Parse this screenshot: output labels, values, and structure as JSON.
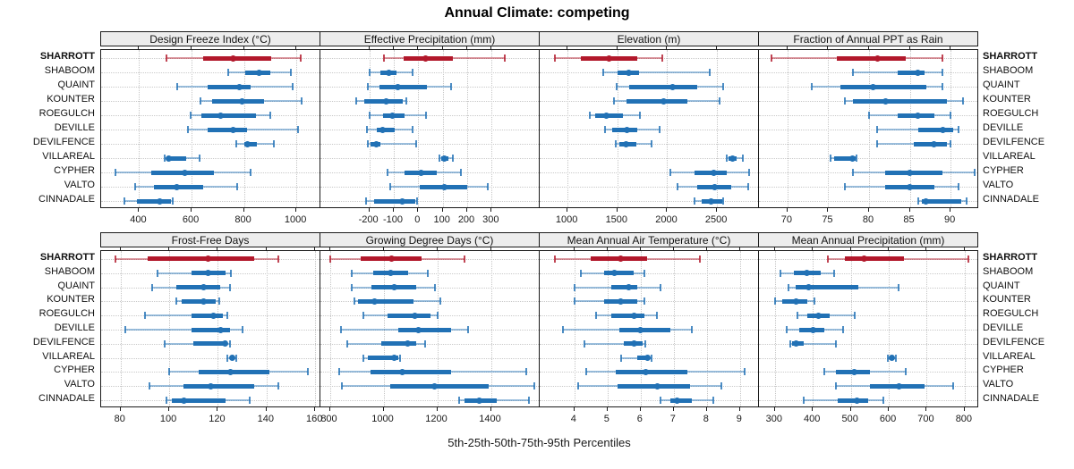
{
  "title": "Annual Climate: competing",
  "caption": "5th-25th-50th-75th-95th Percentiles",
  "colors": {
    "highlight": "#B2182B",
    "normal": "#2171B5",
    "strip_bg": "#EDEDED",
    "grid": "#C6C6C6",
    "border": "#1A1A1A"
  },
  "chart_data": {
    "type": "trellis-percentile-dotplot",
    "percentile_labels": [
      "5th",
      "25th",
      "50th",
      "75th",
      "95th"
    ],
    "legend_note": "red row = highlighted site SHARROTT; blue rows = comparison sites",
    "sites": [
      "SHARROTT",
      "SHABOOM",
      "QUAINT",
      "KOUNTER",
      "ROEGULCH",
      "DEVILLE",
      "DEVILFENCE",
      "VILLAREAL",
      "CYPHER",
      "VALTO",
      "CINNADALE"
    ],
    "highlighted_site": "SHARROTT",
    "panels": [
      {
        "title": "Design Freeze Index (°C)",
        "domain": [
          255,
          1095
        ],
        "ticks": [
          400,
          600,
          800,
          1000
        ],
        "series": [
          [
            505,
            645,
            760,
            905,
            1015
          ],
          [
            740,
            805,
            857,
            900,
            980
          ],
          [
            545,
            662,
            783,
            825,
            985
          ],
          [
            635,
            680,
            793,
            875,
            1020
          ],
          [
            595,
            638,
            710,
            845,
            900
          ],
          [
            585,
            660,
            758,
            810,
            1005
          ],
          [
            770,
            800,
            814,
            850,
            915
          ],
          [
            498,
            505,
            512,
            578,
            630
          ],
          [
            310,
            445,
            575,
            685,
            825
          ],
          [
            385,
            455,
            545,
            645,
            775
          ],
          [
            345,
            390,
            477,
            520,
            527
          ]
        ]
      },
      {
        "title": "Effective Precipitation (mm)",
        "domain": [
          -400,
          500
        ],
        "ticks": [
          -200,
          -100,
          0,
          100,
          200,
          300
        ],
        "series": [
          [
            -140,
            -60,
            30,
            140,
            355
          ],
          [
            -200,
            -155,
            -120,
            -90,
            -25
          ],
          [
            -205,
            -160,
            -85,
            35,
            135
          ],
          [
            -255,
            -220,
            -130,
            -62,
            -50
          ],
          [
            -200,
            -145,
            -105,
            -55,
            30
          ],
          [
            -210,
            -170,
            -145,
            -95,
            -25
          ],
          [
            -205,
            -195,
            -170,
            -155,
            -10
          ],
          [
            88,
            95,
            105,
            125,
            140
          ],
          [
            -125,
            -55,
            10,
            75,
            175
          ],
          [
            -115,
            5,
            105,
            200,
            285
          ],
          [
            -215,
            -180,
            -65,
            -12,
            -5
          ]
        ]
      },
      {
        "title": "Elevation (m)",
        "domain": [
          720,
          2930
        ],
        "ticks": [
          1000,
          1500,
          2000,
          2500
        ],
        "series": [
          [
            870,
            1130,
            1420,
            1700,
            1950
          ],
          [
            1360,
            1500,
            1610,
            1720,
            2430
          ],
          [
            1490,
            1620,
            2050,
            2300,
            2560
          ],
          [
            1470,
            1590,
            1960,
            2200,
            2530
          ],
          [
            1220,
            1280,
            1390,
            1560,
            1730
          ],
          [
            1380,
            1450,
            1600,
            1700,
            1920
          ],
          [
            1480,
            1520,
            1590,
            1690,
            1840
          ],
          [
            2600,
            2620,
            2660,
            2700,
            2760
          ],
          [
            2030,
            2270,
            2470,
            2600,
            2820
          ],
          [
            2100,
            2300,
            2480,
            2640,
            2810
          ],
          [
            2270,
            2350,
            2440,
            2550,
            2565
          ]
        ]
      },
      {
        "title": "Fraction of Annual PPT as Rain",
        "domain": [
          66.5,
          93.5
        ],
        "ticks": [
          70,
          75,
          80,
          85,
          90
        ],
        "series": [
          [
            68,
            76,
            81,
            84.5,
            89
          ],
          [
            78,
            83.5,
            86,
            86.8,
            89
          ],
          [
            73,
            76.5,
            80.5,
            87,
            89
          ],
          [
            77,
            78,
            82,
            89.5,
            91.5
          ],
          [
            80,
            83.5,
            86,
            88,
            90
          ],
          [
            81,
            86,
            89,
            90.3,
            91
          ],
          [
            81,
            85.5,
            88,
            89.6,
            90
          ],
          [
            75.3,
            75.7,
            78,
            78.3,
            78.5
          ],
          [
            78,
            82,
            85,
            89,
            93
          ],
          [
            77,
            82,
            85,
            88,
            91
          ],
          [
            86,
            86.5,
            87,
            91.3,
            92
          ]
        ]
      },
      {
        "title": "Frost-Free Days",
        "domain": [
          72,
          162.5
        ],
        "ticks": [
          80,
          100,
          120,
          140,
          160
        ],
        "series": [
          [
            78,
            91,
            116,
            135,
            145
          ],
          [
            95,
            109,
            116,
            123,
            125.5
          ],
          [
            93,
            103,
            114,
            121,
            125
          ],
          [
            103,
            105,
            114,
            119,
            120.5
          ],
          [
            90,
            109,
            118,
            122,
            124
          ],
          [
            82,
            109,
            121,
            125,
            130
          ],
          [
            98,
            110,
            123,
            124,
            125
          ],
          [
            124,
            125,
            126,
            127,
            127.5
          ],
          [
            100,
            112,
            125,
            141,
            157
          ],
          [
            92,
            106,
            117,
            135,
            145
          ],
          [
            99,
            101,
            106,
            123,
            133
          ]
        ]
      },
      {
        "title": "Growing Degree Days (°C)",
        "domain": [
          765,
          1585
        ],
        "ticks": [
          800,
          1000,
          1200,
          1400
        ],
        "series": [
          [
            800,
            915,
            1030,
            1140,
            1300
          ],
          [
            880,
            960,
            1025,
            1090,
            1165
          ],
          [
            880,
            955,
            1040,
            1120,
            1190
          ],
          [
            890,
            905,
            965,
            1110,
            1210
          ],
          [
            925,
            1015,
            1115,
            1175,
            1200
          ],
          [
            840,
            1055,
            1130,
            1250,
            1315
          ],
          [
            865,
            990,
            1090,
            1120,
            1155
          ],
          [
            925,
            940,
            1040,
            1055,
            1062
          ],
          [
            835,
            950,
            1070,
            1250,
            1530
          ],
          [
            845,
            1025,
            1190,
            1390,
            1560
          ],
          [
            1280,
            1300,
            1355,
            1420,
            1540
          ]
        ]
      },
      {
        "title": "Mean Annual Air Temperature (°C)",
        "domain": [
          2.95,
          9.6
        ],
        "ticks": [
          4,
          5,
          6,
          7,
          8,
          9
        ],
        "series": [
          [
            3.4,
            4.5,
            5.4,
            6.2,
            7.8
          ],
          [
            4.2,
            4.9,
            5.2,
            5.8,
            6.1
          ],
          [
            4.0,
            5.1,
            5.65,
            5.9,
            6.6
          ],
          [
            4.0,
            4.9,
            5.4,
            5.9,
            6.1
          ],
          [
            4.65,
            5.1,
            5.8,
            6.1,
            6.5
          ],
          [
            3.65,
            5.35,
            6.0,
            6.9,
            7.55
          ],
          [
            4.3,
            5.5,
            5.8,
            6.05,
            6.15
          ],
          [
            5.4,
            5.9,
            6.2,
            6.28,
            6.32
          ],
          [
            4.35,
            5.25,
            6.15,
            7.4,
            9.15
          ],
          [
            4.1,
            5.3,
            6.5,
            7.5,
            8.45
          ],
          [
            6.6,
            6.9,
            7.1,
            7.55,
            8.2
          ]
        ]
      },
      {
        "title": "Mean Annual Precipitation (mm)",
        "domain": [
          258,
          838
        ],
        "ticks": [
          300,
          400,
          500,
          600,
          700,
          800
        ],
        "series": [
          [
            440,
            485,
            535,
            640,
            810
          ],
          [
            315,
            350,
            385,
            420,
            455
          ],
          [
            335,
            355,
            390,
            520,
            625
          ],
          [
            300,
            320,
            355,
            385,
            405
          ],
          [
            360,
            385,
            415,
            445,
            510
          ],
          [
            330,
            365,
            400,
            430,
            480
          ],
          [
            340,
            345,
            357,
            375,
            460
          ],
          [
            598,
            603,
            608,
            613,
            618
          ],
          [
            430,
            460,
            508,
            550,
            645
          ],
          [
            460,
            550,
            627,
            695,
            770
          ],
          [
            375,
            465,
            517,
            545,
            585
          ]
        ]
      }
    ]
  }
}
